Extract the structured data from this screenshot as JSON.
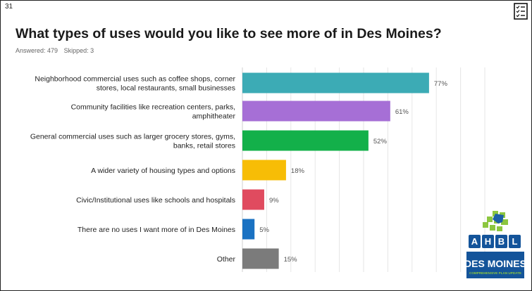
{
  "slide": {
    "number": "31"
  },
  "question": {
    "title": "What types of uses would you like to see more of in Des Moines?",
    "answered_label": "Answered: 479",
    "skipped_label": "Skipped: 3"
  },
  "logos": {
    "ahbl": {
      "letters": [
        "A",
        "H",
        "B",
        "L"
      ]
    },
    "des_moines": {
      "name": "DES MOINES",
      "tagline": "COMPREHENSIVE PLAN UPDATE"
    }
  },
  "chart_data": {
    "type": "bar",
    "orientation": "horizontal",
    "grid": true,
    "xlim": [
      0,
      100
    ],
    "categories": [
      [
        "Neighborhood commercial uses such as coffee shops, corner",
        "stores, local restaurants, small businesses"
      ],
      [
        "Community facilities like recreation centers, parks,",
        "amphitheater"
      ],
      [
        "General commercial uses such as larger grocery stores, gyms,",
        "banks, retail stores"
      ],
      [
        "A wider variety of housing types and options"
      ],
      [
        "Civic/Institutional uses like schools and hospitals"
      ],
      [
        "There are no uses I want more of in Des Moines"
      ],
      [
        "Other"
      ]
    ],
    "values": [
      77,
      61,
      52,
      18,
      9,
      5,
      15
    ],
    "value_labels": [
      "77%",
      "61%",
      "52%",
      "18%",
      "9%",
      "5%",
      "15%"
    ],
    "colors": [
      "#3cabb5",
      "#a66fd6",
      "#13b04a",
      "#f7bd06",
      "#e04b5f",
      "#1a72c2",
      "#7b7b7b"
    ]
  }
}
